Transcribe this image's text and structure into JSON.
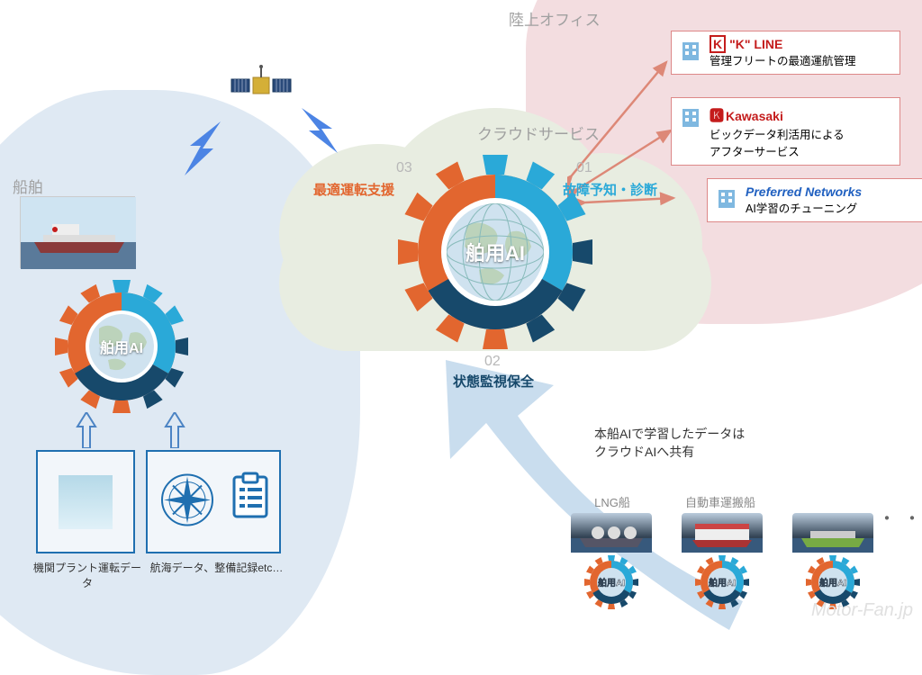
{
  "regions": {
    "ship": "船舶",
    "office": "陸上オフィス",
    "cloud": "クラウドサービス"
  },
  "central_ai": {
    "label": "舶用AI"
  },
  "ship_ai": {
    "label": "舶用AI"
  },
  "functions": {
    "f01": {
      "num": "01",
      "label": "故障予知・診断",
      "color": "#2aa9d8"
    },
    "f02": {
      "num": "02",
      "label": "状態監視保全",
      "color": "#17496b"
    },
    "f03": {
      "num": "03",
      "label": "最適運転支援",
      "color": "#e2662f"
    }
  },
  "office_cards": {
    "kline": {
      "brand": "\"K\" LINE",
      "desc": "管理フリートの最適運航管理",
      "brand_color": "#c41c1c"
    },
    "kawasaki": {
      "brand": "Kawasaki",
      "desc": "ビックデータ利活用による\nアフターサービス",
      "brand_color": "#c41c1c"
    },
    "pfn": {
      "brand": "Preferred Networks",
      "desc": "AI学習のチューニング",
      "brand_color": "#2060c0"
    }
  },
  "data_boxes": {
    "engine": "機関プラント運転データ",
    "voyage": "航海データ、整備記録etc…"
  },
  "bottom_note": {
    "l1": "本船AIで学習したデータは",
    "l2": "クラウドAIへ共有"
  },
  "mini_ships": {
    "lng": {
      "label": "LNG船",
      "ai": "舶用AI"
    },
    "car": {
      "label": "自動車運搬船",
      "ai": "舶用AI"
    },
    "other": {
      "label": "",
      "ai": "舶用AI"
    }
  },
  "dots": "・・・",
  "colors": {
    "gear_orange": "#e2662f",
    "gear_blue": "#2aa9d8",
    "gear_navy": "#17496b",
    "blob_blue": "#dfe9f3",
    "blob_red": "#f3dde0",
    "cloud_bg": "#e8ede1",
    "arrow_blue": "#c9ddee",
    "up_arrow": "#4c84c4",
    "lightning": "#4c84e4"
  },
  "watermark": "Motor-Fan.jp"
}
